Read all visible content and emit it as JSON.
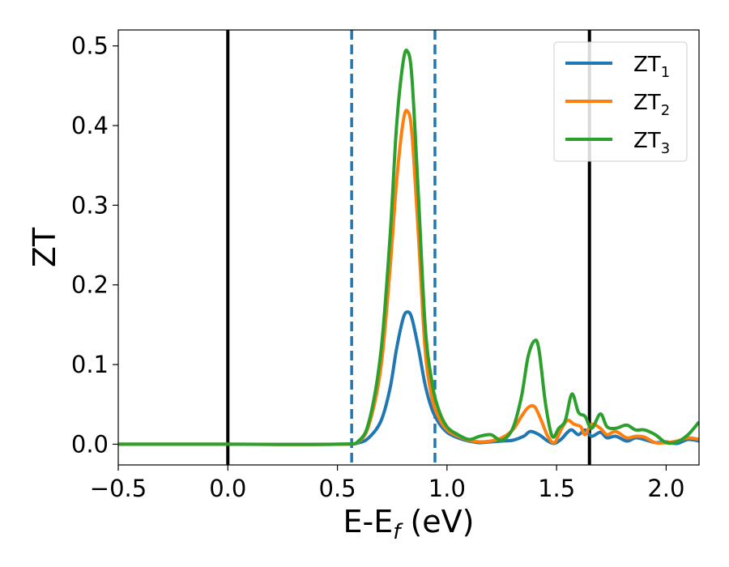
{
  "chart_data": {
    "type": "line",
    "title": "",
    "xlabel": "E-E",
    "xlabel_sub": "f",
    "xlabel_unit": " (eV)",
    "ylabel": "ZT",
    "xlim": [
      -0.5,
      2.15
    ],
    "ylim": [
      -0.026,
      0.52
    ],
    "xticks": [
      -0.5,
      0.0,
      0.5,
      1.0,
      1.5,
      2.0
    ],
    "xtick_labels": [
      "−0.5",
      "0.0",
      "0.5",
      "1.0",
      "1.5",
      "2.0"
    ],
    "yticks": [
      0.0,
      0.1,
      0.2,
      0.3,
      0.4,
      0.5
    ],
    "ytick_labels": [
      "0.0",
      "0.1",
      "0.2",
      "0.3",
      "0.4",
      "0.5"
    ],
    "grid": false,
    "legend_position": "top-right",
    "vertical_lines": [
      {
        "x": 0.0,
        "style": "solid",
        "color": "#000000"
      },
      {
        "x": 1.65,
        "style": "solid",
        "color": "#000000"
      },
      {
        "x": 0.565,
        "style": "dashed",
        "color": "#1f77b4"
      },
      {
        "x": 0.945,
        "style": "dashed",
        "color": "#1f77b4"
      }
    ],
    "series": [
      {
        "name": "ZT",
        "name_sub": "1",
        "color": "#1f77b4",
        "x": [
          -0.5,
          0.0,
          0.5,
          0.6,
          0.65,
          0.7,
          0.74,
          0.77,
          0.8,
          0.82,
          0.84,
          0.87,
          0.9,
          0.93,
          0.96,
          1.0,
          1.05,
          1.1,
          1.15,
          1.2,
          1.25,
          1.3,
          1.35,
          1.38,
          1.42,
          1.46,
          1.49,
          1.52,
          1.55,
          1.57,
          1.6,
          1.63,
          1.66,
          1.7,
          1.73,
          1.77,
          1.82,
          1.86,
          1.9,
          1.95,
          2.0,
          2.05,
          2.1,
          2.15
        ],
        "y": [
          0.0,
          0.0,
          0.0,
          0.002,
          0.01,
          0.03,
          0.07,
          0.12,
          0.158,
          0.166,
          0.158,
          0.12,
          0.075,
          0.045,
          0.028,
          0.015,
          0.008,
          0.004,
          0.002,
          0.003,
          0.004,
          0.005,
          0.01,
          0.016,
          0.012,
          0.004,
          0.001,
          0.006,
          0.015,
          0.018,
          0.012,
          0.018,
          0.01,
          0.015,
          0.008,
          0.01,
          0.004,
          0.008,
          0.006,
          0.002,
          0.003,
          0.001,
          0.006,
          0.004
        ]
      },
      {
        "name": "ZT",
        "name_sub": "2",
        "color": "#ff7f0e",
        "x": [
          -0.5,
          0.0,
          0.5,
          0.6,
          0.65,
          0.7,
          0.74,
          0.77,
          0.8,
          0.82,
          0.84,
          0.87,
          0.9,
          0.93,
          0.96,
          1.0,
          1.05,
          1.1,
          1.15,
          1.2,
          1.25,
          1.3,
          1.34,
          1.37,
          1.4,
          1.43,
          1.46,
          1.49,
          1.52,
          1.55,
          1.58,
          1.61,
          1.63,
          1.66,
          1.7,
          1.73,
          1.77,
          1.82,
          1.86,
          1.9,
          1.95,
          2.0,
          2.05,
          2.1,
          2.15
        ],
        "y": [
          0.0,
          0.0,
          0.0,
          0.004,
          0.03,
          0.1,
          0.22,
          0.33,
          0.405,
          0.418,
          0.39,
          0.26,
          0.12,
          0.06,
          0.035,
          0.018,
          0.01,
          0.005,
          0.003,
          0.004,
          0.008,
          0.018,
          0.035,
          0.046,
          0.047,
          0.03,
          0.01,
          0.002,
          0.018,
          0.03,
          0.025,
          0.022,
          0.012,
          0.025,
          0.02,
          0.012,
          0.016,
          0.008,
          0.01,
          0.009,
          0.002,
          0.002,
          0.004,
          0.008,
          0.006
        ]
      },
      {
        "name": "ZT",
        "name_sub": "3",
        "color": "#2ca02c",
        "x": [
          -0.5,
          0.0,
          0.5,
          0.6,
          0.65,
          0.7,
          0.74,
          0.77,
          0.8,
          0.82,
          0.84,
          0.87,
          0.9,
          0.93,
          0.96,
          1.0,
          1.05,
          1.1,
          1.15,
          1.2,
          1.25,
          1.3,
          1.34,
          1.37,
          1.4,
          1.42,
          1.45,
          1.48,
          1.51,
          1.54,
          1.57,
          1.6,
          1.63,
          1.66,
          1.7,
          1.73,
          1.77,
          1.82,
          1.86,
          1.9,
          1.95,
          2.0,
          2.05,
          2.1,
          2.15
        ],
        "y": [
          0.0,
          0.0,
          0.0,
          0.005,
          0.035,
          0.12,
          0.26,
          0.4,
          0.48,
          0.493,
          0.46,
          0.31,
          0.15,
          0.08,
          0.045,
          0.022,
          0.012,
          0.006,
          0.01,
          0.012,
          0.005,
          0.02,
          0.06,
          0.11,
          0.13,
          0.118,
          0.05,
          0.01,
          0.02,
          0.03,
          0.063,
          0.04,
          0.035,
          0.02,
          0.038,
          0.022,
          0.02,
          0.024,
          0.018,
          0.018,
          0.012,
          0.002,
          0.003,
          0.012,
          0.028
        ]
      }
    ]
  }
}
